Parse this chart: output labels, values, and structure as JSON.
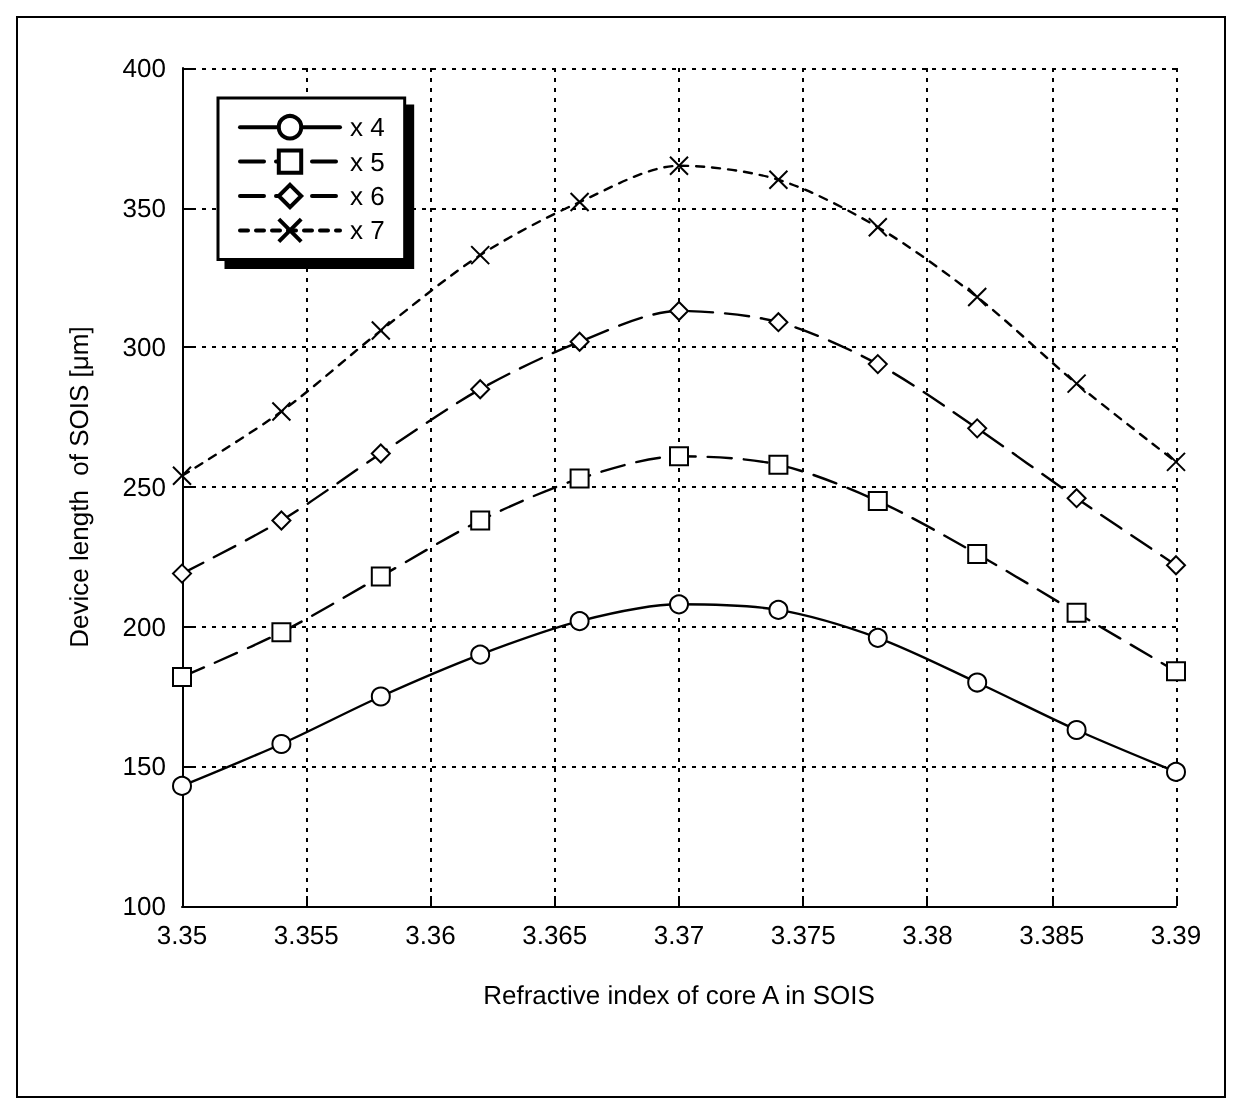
{
  "chart_data": {
    "type": "line",
    "xlabel": "Refractive index of core A in SOIS",
    "ylabel": "Device length  of SOIS [μm]",
    "xlim": [
      3.35,
      3.39
    ],
    "xticks": [
      3.35,
      3.355,
      3.36,
      3.365,
      3.37,
      3.375,
      3.38,
      3.385,
      3.39
    ],
    "ylim": [
      100,
      400
    ],
    "yticks": [
      100,
      150,
      200,
      250,
      300,
      350,
      400
    ],
    "grid": true,
    "legend": "top left",
    "series": [
      {
        "name": "x 4",
        "color": "#000000",
        "line_style": "solid",
        "marker": "circle",
        "x": [
          3.35,
          3.354,
          3.358,
          3.362,
          3.366,
          3.37,
          3.374,
          3.378,
          3.382,
          3.386,
          3.39
        ],
        "values": [
          143,
          158,
          175,
          190,
          202,
          208,
          206,
          196,
          180,
          163,
          148
        ]
      },
      {
        "name": "x 5",
        "color": "#000000",
        "line_style": "dashed",
        "marker": "square",
        "x": [
          3.35,
          3.354,
          3.358,
          3.362,
          3.366,
          3.37,
          3.374,
          3.378,
          3.382,
          3.386,
          3.39
        ],
        "values": [
          182,
          198,
          218,
          238,
          253,
          261,
          258,
          245,
          226,
          205,
          184
        ]
      },
      {
        "name": "x 6",
        "color": "#000000",
        "line_style": "dashed",
        "marker": "diamond",
        "x": [
          3.35,
          3.354,
          3.358,
          3.362,
          3.366,
          3.37,
          3.374,
          3.378,
          3.382,
          3.386,
          3.39
        ],
        "values": [
          219,
          238,
          262,
          285,
          302,
          313,
          309,
          294,
          271,
          246,
          222
        ]
      },
      {
        "name": "x 7",
        "color": "#000000",
        "line_style": "dotted",
        "marker": "cross",
        "x": [
          3.35,
          3.354,
          3.358,
          3.362,
          3.366,
          3.37,
          3.374,
          3.378,
          3.382,
          3.386,
          3.39
        ],
        "values": [
          254,
          277,
          306,
          333,
          352,
          365,
          360,
          343,
          318,
          287,
          259
        ]
      }
    ]
  }
}
